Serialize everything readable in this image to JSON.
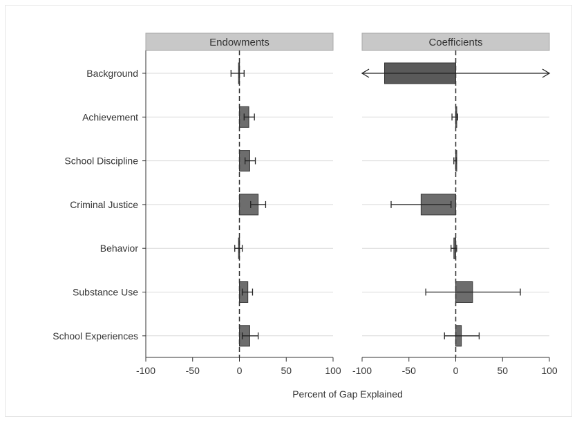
{
  "chart_data": {
    "type": "bar",
    "orientation": "horizontal",
    "xlabel": "Percent of Gap Explained",
    "xlim": [
      -100,
      100
    ],
    "xticks": [
      -100,
      -50,
      0,
      50,
      100
    ],
    "categories": [
      "Background",
      "Achievement",
      "School Discipline",
      "Criminal Justice",
      "Behavior",
      "Substance Use",
      "School Experiences"
    ],
    "panels": [
      {
        "title": "Endowments",
        "values": [
          -1,
          10,
          11,
          20,
          -1,
          9,
          11
        ],
        "ci_low": [
          -9,
          5,
          6,
          12,
          -5,
          3,
          3
        ],
        "ci_high": [
          5,
          16,
          17,
          28,
          3,
          14,
          20
        ],
        "ci_clipped_low": [
          false,
          false,
          false,
          false,
          false,
          false,
          false
        ],
        "ci_clipped_high": [
          false,
          false,
          false,
          false,
          false,
          false,
          false
        ]
      },
      {
        "title": "Coefficients",
        "values": [
          -76,
          0,
          0,
          -37,
          -2,
          18,
          6
        ],
        "ci_low": [
          -100,
          -4,
          -2,
          -69,
          -5,
          -32,
          -12
        ],
        "ci_high": [
          100,
          2,
          1,
          -5,
          1,
          69,
          25
        ],
        "ci_clipped_low": [
          true,
          false,
          false,
          false,
          false,
          false,
          false
        ],
        "ci_clipped_high": [
          true,
          false,
          false,
          false,
          false,
          false,
          false
        ]
      }
    ],
    "colors": {
      "bar_fill": "#6d6d6d",
      "bar_fill_dark": "#5a5a5a",
      "bar_stroke": "#333333",
      "header_fill": "#c8c8c8",
      "gridline": "#d9d9d9",
      "axis": "#333333"
    },
    "grid": true,
    "legend": "none"
  }
}
